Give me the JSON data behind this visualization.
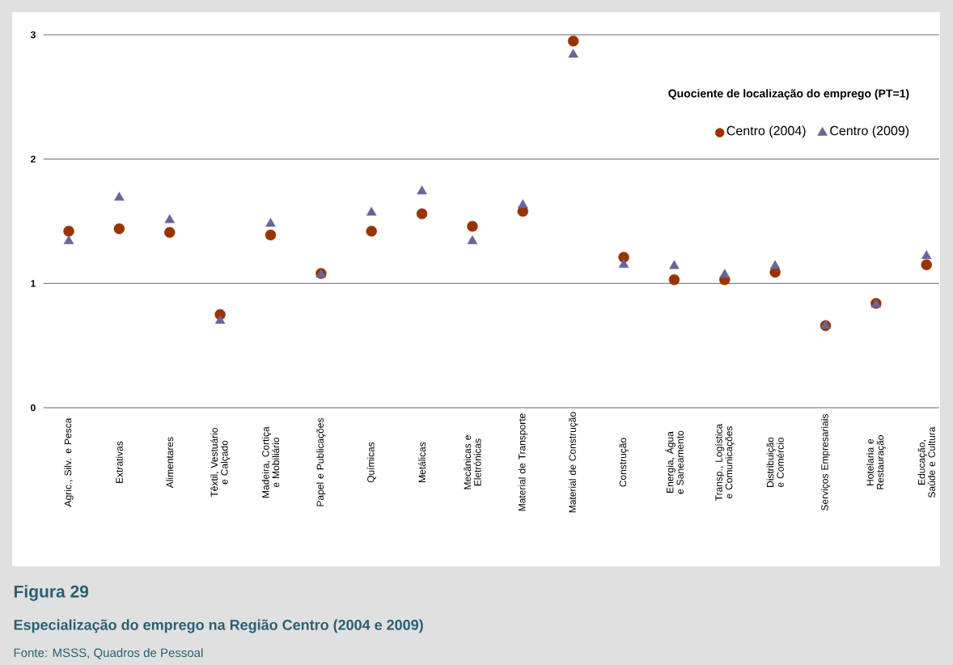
{
  "chart_data": {
    "type": "scatter",
    "title": "Figura 29",
    "subtitle": "Especialização do emprego na Região Centro (2004 e 2009)",
    "annotations": [
      "Fonte: MSSS, Quadros de Pessoal"
    ],
    "legend_title": "Quociente de localização do emprego (PT=1)",
    "categories": [
      "Agric., Silv. e Pesca",
      "Extrativas",
      "Alimentares",
      "Têxtil, Vestuário e Calçado",
      "Madeira, Cortiça e Mobiliário",
      "Papel e Publicações",
      "Químicas",
      "Metálicas",
      "Mecânicas e Eletrónicas",
      "Material de Transporte",
      "Material de Construção",
      "Construção",
      "Energia, Água e Saneamento",
      "Transp., Logística e Comunicações",
      "Distribuição e Comércio",
      "Serviços Empresariais",
      "Hotelaria e Restauração",
      "Educação, Saúde e Cultura"
    ],
    "series": [
      {
        "name": "Centro (2004)",
        "color": "#993300",
        "marker": "circle",
        "values": [
          1.42,
          1.44,
          1.41,
          0.75,
          1.39,
          1.08,
          1.42,
          1.56,
          1.46,
          1.58,
          2.95,
          1.21,
          1.03,
          1.03,
          1.09,
          0.66,
          0.84,
          1.15
        ]
      },
      {
        "name": "Centro (2009)",
        "color": "#666699",
        "marker": "triangle",
        "values": [
          1.34,
          1.69,
          1.51,
          0.7,
          1.48,
          1.07,
          1.57,
          1.74,
          1.34,
          1.63,
          2.84,
          1.15,
          1.14,
          1.07,
          1.14,
          0.66,
          0.83,
          1.22
        ]
      }
    ],
    "ylim": [
      0,
      3
    ],
    "yticks": [
      0,
      1,
      2,
      3
    ],
    "grid": "y",
    "legend": "top right"
  }
}
